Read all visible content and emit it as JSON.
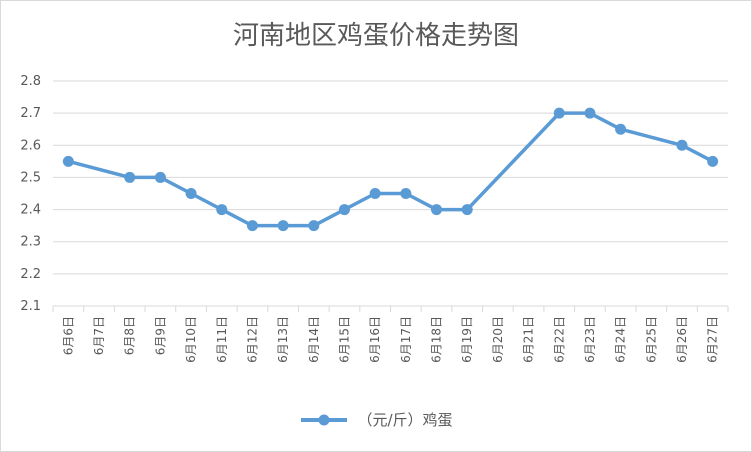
{
  "chart_data": {
    "type": "line",
    "title": "河南地区鸡蛋价格走势图",
    "xlabel": "",
    "ylabel": "",
    "ylim": [
      2.1,
      2.8
    ],
    "yticks": [
      "2.8",
      "2.7",
      "2.6",
      "2.5",
      "2.4",
      "2.3",
      "2.2",
      "2.1"
    ],
    "grid": true,
    "legend_position": "bottom",
    "categories": [
      "6月6日",
      "6月7日",
      "6月8日",
      "6月9日",
      "6月10日",
      "6月11日",
      "6月12日",
      "6月13日",
      "6月14日",
      "6月15日",
      "6月16日",
      "6月17日",
      "6月18日",
      "6月19日",
      "6月20日",
      "6月21日",
      "6月22日",
      "6月23日",
      "6月24日",
      "6月25日",
      "6月26日",
      "6月27日"
    ],
    "series": [
      {
        "name": "（元/斤）鸡蛋",
        "color": "#5b9bd5",
        "values": [
          2.55,
          null,
          2.5,
          2.5,
          2.45,
          2.4,
          2.35,
          2.35,
          2.35,
          2.4,
          2.45,
          2.45,
          2.4,
          2.4,
          null,
          null,
          2.7,
          2.7,
          2.65,
          null,
          2.6,
          2.55
        ]
      }
    ]
  }
}
